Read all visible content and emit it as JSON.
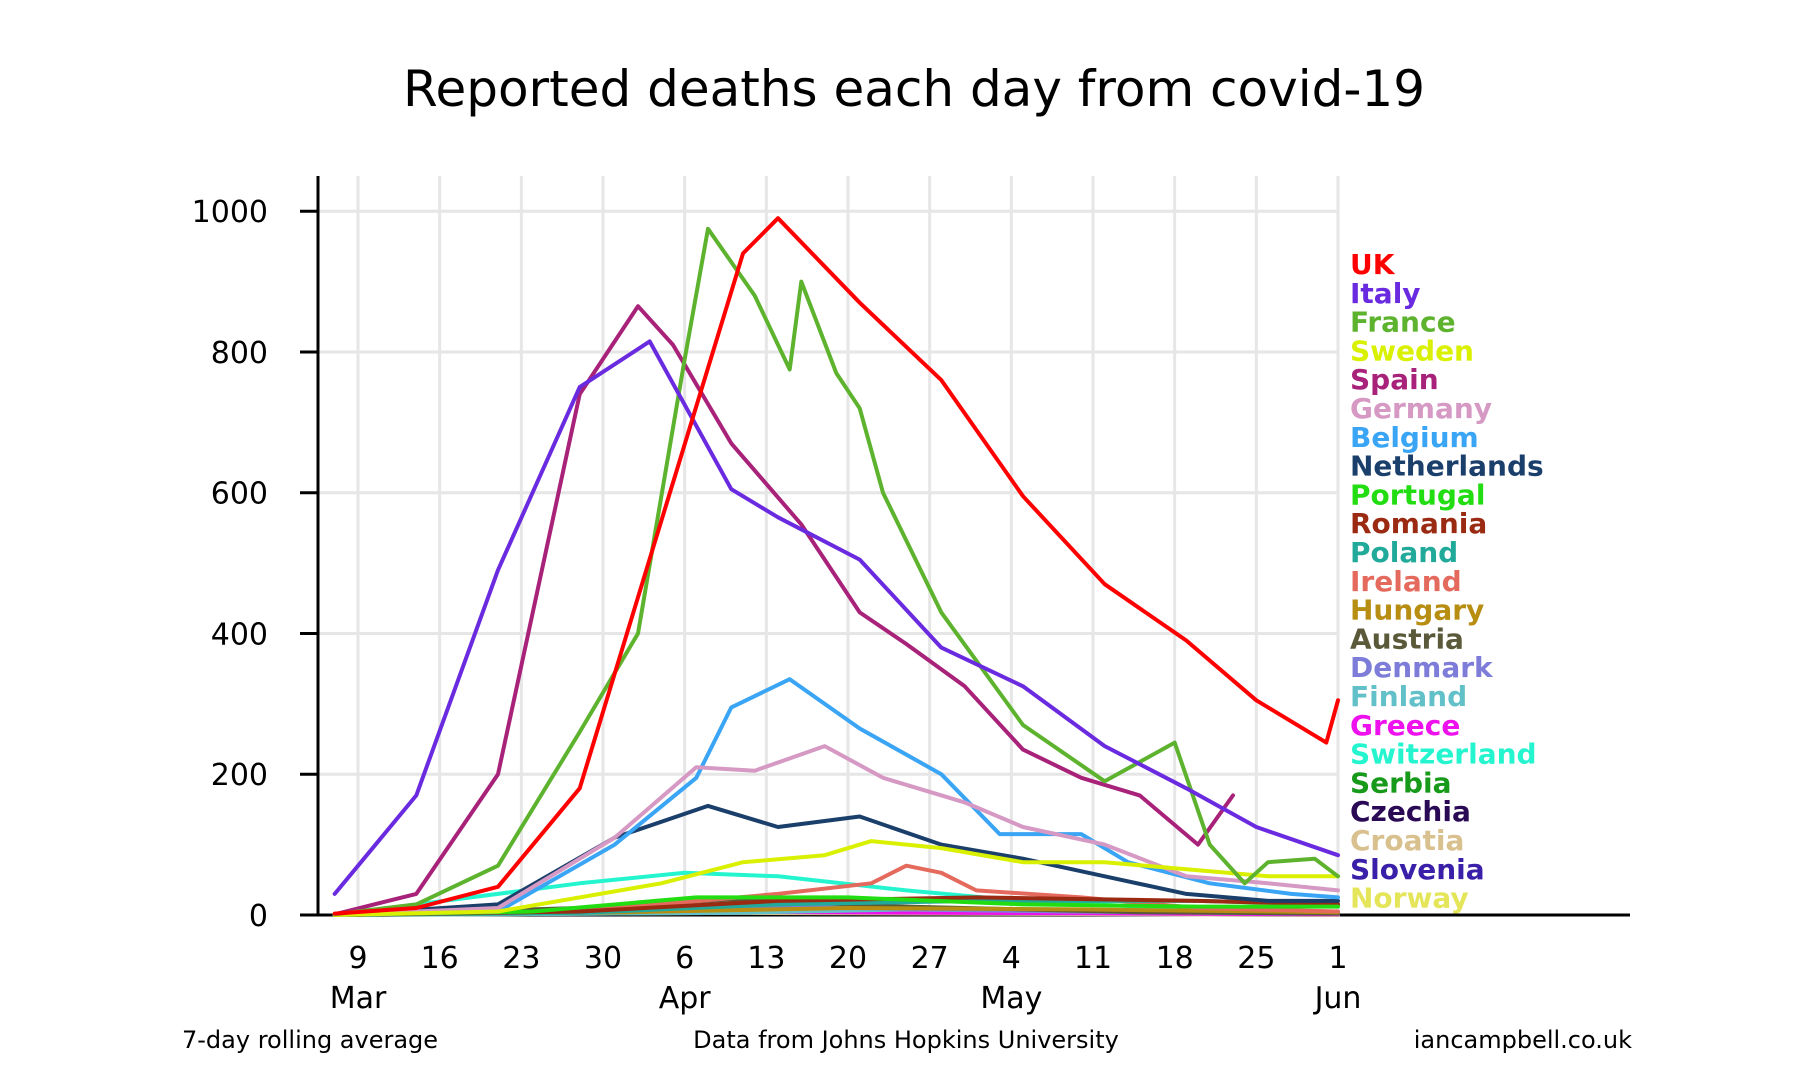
{
  "chart_data": {
    "type": "line",
    "title": "Reported deaths each day from covid-19",
    "xlabel": "",
    "ylabel": "",
    "ylim": [
      0,
      1050
    ],
    "yticks": [
      0,
      200,
      400,
      600,
      800,
      1000
    ],
    "x_dates": [
      "2020-03-09",
      "2020-03-16",
      "2020-03-23",
      "2020-03-30",
      "2020-04-06",
      "2020-04-13",
      "2020-04-20",
      "2020-04-27",
      "2020-05-04",
      "2020-05-11",
      "2020-05-18",
      "2020-05-25",
      "2020-06-01"
    ],
    "x_tick_days": [
      "9",
      "16",
      "23",
      "30",
      "6",
      "13",
      "20",
      "27",
      "4",
      "11",
      "18",
      "25",
      "1"
    ],
    "x_month_labels": [
      "Mar",
      "Apr",
      "May",
      "Jun"
    ],
    "legend_position": "right",
    "grid": true,
    "footer": {
      "left": "7-day rolling average",
      "center": "Data from Johns Hopkins University",
      "right": "iancampbell.co.uk"
    },
    "series": [
      {
        "name": "UK",
        "color": "#ff0000",
        "x": [
          "2020-03-07",
          "2020-03-14",
          "2020-03-21",
          "2020-03-28",
          "2020-04-04",
          "2020-04-11",
          "2020-04-14",
          "2020-04-21",
          "2020-04-28",
          "2020-05-05",
          "2020-05-12",
          "2020-05-19",
          "2020-05-25",
          "2020-05-31",
          "2020-06-01"
        ],
        "values": [
          2,
          10,
          40,
          180,
          560,
          940,
          990,
          870,
          760,
          595,
          470,
          390,
          305,
          245,
          305
        ]
      },
      {
        "name": "Italy",
        "color": "#6a2be0",
        "x": [
          "2020-03-07",
          "2020-03-14",
          "2020-03-21",
          "2020-03-28",
          "2020-04-03",
          "2020-04-10",
          "2020-04-14",
          "2020-04-21",
          "2020-04-28",
          "2020-05-05",
          "2020-05-12",
          "2020-05-19",
          "2020-05-25",
          "2020-06-01"
        ],
        "values": [
          30,
          170,
          490,
          750,
          815,
          605,
          565,
          505,
          380,
          325,
          240,
          180,
          125,
          85
        ]
      },
      {
        "name": "France",
        "color": "#5db32e",
        "x": [
          "2020-03-07",
          "2020-03-14",
          "2020-03-21",
          "2020-03-28",
          "2020-04-02",
          "2020-04-06",
          "2020-04-08",
          "2020-04-12",
          "2020-04-15",
          "2020-04-16",
          "2020-04-19",
          "2020-04-21",
          "2020-04-23",
          "2020-04-28",
          "2020-05-05",
          "2020-05-12",
          "2020-05-18",
          "2020-05-21",
          "2020-05-24",
          "2020-05-26",
          "2020-05-30",
          "2020-06-01"
        ],
        "values": [
          1,
          15,
          70,
          260,
          400,
          790,
          975,
          880,
          775,
          900,
          770,
          720,
          600,
          430,
          270,
          190,
          245,
          100,
          45,
          75,
          80,
          55
        ]
      },
      {
        "name": "Sweden",
        "color": "#d9f000",
        "x": [
          "2020-03-07",
          "2020-03-21",
          "2020-04-04",
          "2020-04-11",
          "2020-04-18",
          "2020-04-22",
          "2020-04-28",
          "2020-05-05",
          "2020-05-12",
          "2020-05-19",
          "2020-05-26",
          "2020-06-01"
        ],
        "values": [
          0,
          5,
          45,
          75,
          85,
          105,
          95,
          75,
          75,
          65,
          55,
          55
        ]
      },
      {
        "name": "Spain",
        "color": "#a8227a",
        "x": [
          "2020-03-07",
          "2020-03-14",
          "2020-03-21",
          "2020-03-28",
          "2020-04-02",
          "2020-04-05",
          "2020-04-10",
          "2020-04-16",
          "2020-04-21",
          "2020-04-25",
          "2020-04-30",
          "2020-05-05",
          "2020-05-10",
          "2020-05-15",
          "2020-05-20",
          "2020-05-23"
        ],
        "values": [
          1,
          30,
          200,
          740,
          865,
          810,
          670,
          555,
          430,
          385,
          325,
          235,
          195,
          170,
          100,
          170
        ]
      },
      {
        "name": "Germany",
        "color": "#d599c4",
        "x": [
          "2020-03-07",
          "2020-03-21",
          "2020-03-31",
          "2020-04-07",
          "2020-04-12",
          "2020-04-18",
          "2020-04-23",
          "2020-04-30",
          "2020-05-05",
          "2020-05-12",
          "2020-05-19",
          "2020-05-26",
          "2020-06-01"
        ],
        "values": [
          0,
          10,
          110,
          210,
          205,
          240,
          195,
          160,
          125,
          100,
          55,
          45,
          35
        ]
      },
      {
        "name": "Belgium",
        "color": "#3aa5f5",
        "x": [
          "2020-03-07",
          "2020-03-21",
          "2020-03-31",
          "2020-04-07",
          "2020-04-10",
          "2020-04-15",
          "2020-04-21",
          "2020-04-28",
          "2020-05-03",
          "2020-05-10",
          "2020-05-14",
          "2020-05-21",
          "2020-05-28",
          "2020-06-01"
        ],
        "values": [
          0,
          5,
          100,
          195,
          295,
          335,
          265,
          200,
          115,
          115,
          75,
          45,
          30,
          25
        ]
      },
      {
        "name": "Netherlands",
        "color": "#1b3f6b",
        "x": [
          "2020-03-07",
          "2020-03-21",
          "2020-03-31",
          "2020-04-08",
          "2020-04-14",
          "2020-04-21",
          "2020-04-28",
          "2020-05-05",
          "2020-05-12",
          "2020-05-19",
          "2020-05-26",
          "2020-06-01"
        ],
        "values": [
          0,
          15,
          110,
          155,
          125,
          140,
          100,
          80,
          55,
          30,
          20,
          20
        ]
      },
      {
        "name": "Portugal",
        "color": "#22dd11",
        "x": [
          "2020-03-07",
          "2020-03-24",
          "2020-04-07",
          "2020-04-20",
          "2020-05-05",
          "2020-05-20",
          "2020-06-01"
        ],
        "values": [
          0,
          5,
          25,
          25,
          15,
          12,
          12
        ]
      },
      {
        "name": "Romania",
        "color": "#9b2a13",
        "x": [
          "2020-03-07",
          "2020-03-28",
          "2020-04-14",
          "2020-05-01",
          "2020-05-20",
          "2020-06-01"
        ],
        "values": [
          0,
          5,
          20,
          25,
          20,
          15
        ]
      },
      {
        "name": "Poland",
        "color": "#21a99a",
        "x": [
          "2020-03-07",
          "2020-03-28",
          "2020-04-14",
          "2020-05-01",
          "2020-05-20",
          "2020-06-01"
        ],
        "values": [
          0,
          3,
          15,
          20,
          20,
          15
        ]
      },
      {
        "name": "Ireland",
        "color": "#e56a5e",
        "x": [
          "2020-03-07",
          "2020-03-28",
          "2020-04-14",
          "2020-04-22",
          "2020-04-25",
          "2020-04-28",
          "2020-05-01",
          "2020-05-10",
          "2020-05-20",
          "2020-06-01"
        ],
        "values": [
          0,
          5,
          30,
          45,
          70,
          60,
          35,
          25,
          10,
          5
        ]
      },
      {
        "name": "Hungary",
        "color": "#b78d12",
        "x": [
          "2020-03-07",
          "2020-04-01",
          "2020-04-20",
          "2020-05-10",
          "2020-06-01"
        ],
        "values": [
          0,
          4,
          10,
          8,
          4
        ]
      },
      {
        "name": "Austria",
        "color": "#5a5a3a",
        "x": [
          "2020-03-07",
          "2020-03-28",
          "2020-04-10",
          "2020-04-25",
          "2020-05-15",
          "2020-06-01"
        ],
        "values": [
          0,
          10,
          22,
          12,
          4,
          2
        ]
      },
      {
        "name": "Denmark",
        "color": "#7d7dd9",
        "x": [
          "2020-03-07",
          "2020-04-01",
          "2020-04-14",
          "2020-05-05",
          "2020-06-01"
        ],
        "values": [
          0,
          8,
          12,
          6,
          2
        ]
      },
      {
        "name": "Finland",
        "color": "#62c0c9",
        "x": [
          "2020-03-07",
          "2020-04-10",
          "2020-04-25",
          "2020-05-15",
          "2020-06-01"
        ],
        "values": [
          0,
          3,
          8,
          4,
          2
        ]
      },
      {
        "name": "Greece",
        "color": "#ee11ee",
        "x": [
          "2020-03-07",
          "2020-04-05",
          "2020-05-01",
          "2020-06-01"
        ],
        "values": [
          0,
          5,
          3,
          1
        ]
      },
      {
        "name": "Switzerland",
        "color": "#25f5cf",
        "x": [
          "2020-03-07",
          "2020-03-28",
          "2020-04-06",
          "2020-04-14",
          "2020-04-25",
          "2020-05-05",
          "2020-05-20",
          "2020-06-01"
        ],
        "values": [
          0,
          45,
          60,
          55,
          35,
          20,
          8,
          3
        ]
      },
      {
        "name": "Serbia",
        "color": "#17991a",
        "x": [
          "2020-03-07",
          "2020-04-05",
          "2020-04-20",
          "2020-05-10",
          "2020-06-01"
        ],
        "values": [
          0,
          5,
          8,
          4,
          2
        ]
      },
      {
        "name": "Czechia",
        "color": "#2a0a55",
        "x": [
          "2020-03-07",
          "2020-04-06",
          "2020-04-20",
          "2020-05-10",
          "2020-06-01"
        ],
        "values": [
          0,
          8,
          8,
          4,
          2
        ]
      },
      {
        "name": "Croatia",
        "color": "#d9c08f",
        "x": [
          "2020-03-07",
          "2020-04-10",
          "2020-05-01",
          "2020-06-01"
        ],
        "values": [
          0,
          3,
          2,
          0
        ]
      },
      {
        "name": "Slovenia",
        "color": "#3a20a8",
        "x": [
          "2020-03-07",
          "2020-04-10",
          "2020-05-01",
          "2020-06-01"
        ],
        "values": [
          0,
          4,
          2,
          0
        ]
      },
      {
        "name": "Norway",
        "color": "#e5e55a",
        "x": [
          "2020-03-07",
          "2020-04-05",
          "2020-04-25",
          "2020-06-01"
        ],
        "values": [
          0,
          6,
          3,
          1
        ]
      }
    ]
  }
}
